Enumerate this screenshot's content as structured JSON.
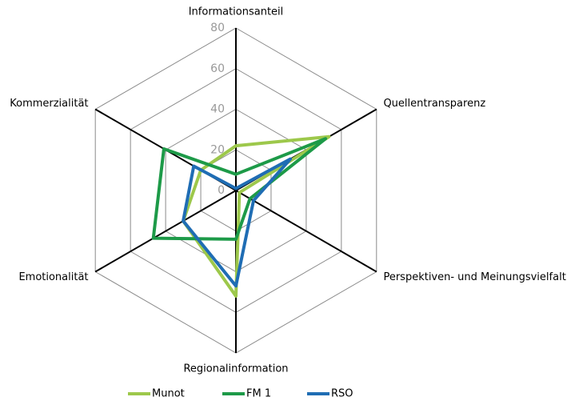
{
  "chart_data": {
    "type": "radar",
    "categories": [
      "Informationsanteil",
      "Quellentransparenz",
      "Perspektiven- und Meinungsvielfalt",
      "Regionalinformation",
      "Emotionalität",
      "Kommerzialität"
    ],
    "series": [
      {
        "name": "Munot",
        "color": "#9dc84b",
        "values": [
          22,
          53,
          2,
          52,
          30,
          20
        ]
      },
      {
        "name": "FM 1",
        "color": "#1d9a48",
        "values": [
          8,
          51,
          8,
          24,
          47,
          41
        ]
      },
      {
        "name": "RSO",
        "color": "#1f6db4",
        "values": [
          1,
          31,
          10,
          47,
          30,
          24
        ]
      }
    ],
    "ylim": [
      0,
      80
    ],
    "yticks": [
      0,
      20,
      40,
      60,
      80
    ],
    "grid": true,
    "legend": "bottom"
  }
}
